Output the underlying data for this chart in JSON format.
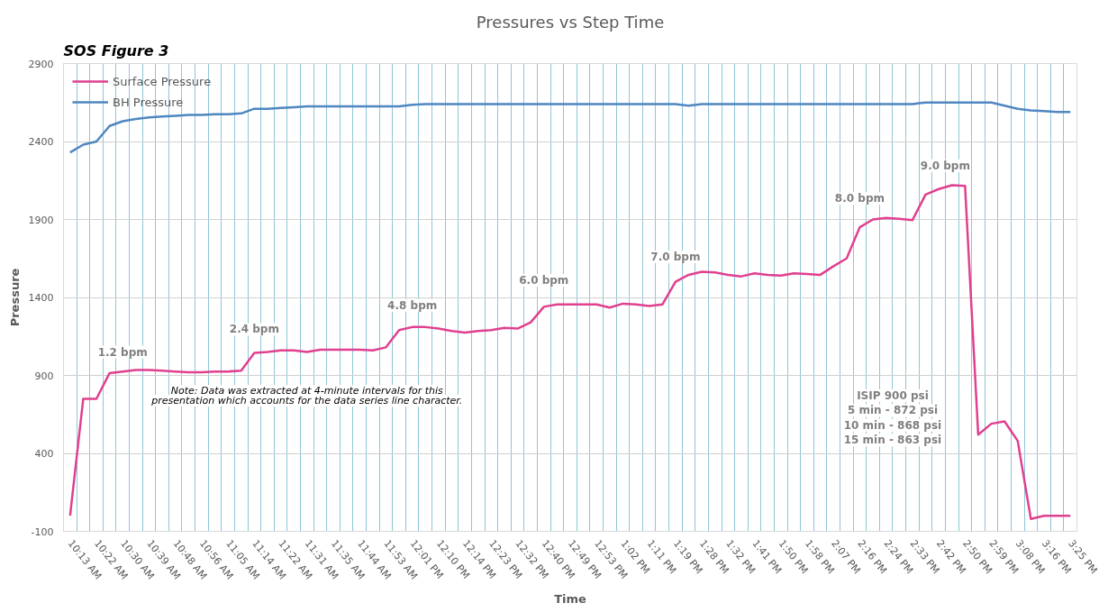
{
  "chart_data": {
    "type": "line",
    "title": "Pressures vs Step Time",
    "xlabel": "Time",
    "ylabel": "Pressure",
    "categories": [
      "10:13 AM",
      null,
      "10:22 AM",
      null,
      "10:30 AM",
      null,
      "10:39 AM",
      null,
      "10:48 AM",
      null,
      "10:56 AM",
      null,
      "11:05 AM",
      null,
      "11:14 AM",
      null,
      "11:22 AM",
      null,
      "11:31 AM",
      null,
      "11:35 AM",
      null,
      "11:44 AM",
      null,
      "11:53 AM",
      null,
      "12:01 PM",
      null,
      "12:10 PM",
      null,
      "12:14 PM",
      null,
      "12:23 PM",
      null,
      "12:32 PM",
      null,
      "12:40 PM",
      null,
      "12:49 PM",
      null,
      "12:53 PM",
      null,
      "1:02 PM",
      null,
      "1:11 PM",
      null,
      "1:19 PM",
      null,
      "1:28 PM",
      null,
      "1:32 PM",
      null,
      "1:41 PM",
      null,
      "1:50 PM",
      null,
      "1:58 PM",
      null,
      "2:07 PM",
      null,
      "2:16 PM",
      null,
      "2:24 PM",
      null,
      "2:33 PM",
      null,
      "2:42 PM",
      null,
      "2:50 PM",
      null,
      "2:59 PM",
      null,
      "3:08 PM",
      null,
      "3:16 PM",
      null,
      "3:25 PM"
    ],
    "series": [
      {
        "name": "Surface Pressure",
        "color": "#e0408f",
        "values": [
          0,
          750,
          750,
          915,
          925,
          935,
          935,
          930,
          925,
          920,
          920,
          925,
          925,
          930,
          1045,
          1050,
          1060,
          1060,
          1050,
          1065,
          1065,
          1065,
          1065,
          1060,
          1080,
          1190,
          1210,
          1210,
          1200,
          1185,
          1175,
          1185,
          1190,
          1205,
          1200,
          1240,
          1340,
          1355,
          1355,
          1355,
          1355,
          1335,
          1360,
          1355,
          1345,
          1355,
          1500,
          1545,
          1565,
          1560,
          1545,
          1535,
          1555,
          1545,
          1540,
          1555,
          1550,
          1545,
          1600,
          1650,
          1850,
          1900,
          1910,
          1905,
          1895,
          2060,
          2095,
          2120,
          2115,
          520,
          590,
          605,
          480,
          -20,
          0,
          0,
          0
        ]
      },
      {
        "name": "BH Pressure",
        "color": "#4f87c0",
        "values": [
          2330,
          2380,
          2400,
          2500,
          2530,
          2545,
          2555,
          2560,
          2565,
          2570,
          2570,
          2575,
          2575,
          2580,
          2610,
          2610,
          2615,
          2620,
          2625,
          2625,
          2625,
          2625,
          2625,
          2625,
          2625,
          2625,
          2635,
          2640,
          2640,
          2640,
          2640,
          2640,
          2640,
          2640,
          2640,
          2640,
          2640,
          2640,
          2640,
          2640,
          2640,
          2640,
          2640,
          2640,
          2640,
          2640,
          2640,
          2630,
          2640,
          2640,
          2640,
          2640,
          2640,
          2640,
          2640,
          2640,
          2640,
          2640,
          2640,
          2640,
          2640,
          2640,
          2640,
          2640,
          2640,
          2650,
          2650,
          2650,
          2650,
          2650,
          2650,
          2630,
          2610,
          2600,
          2595,
          2590,
          2590
        ]
      }
    ],
    "ylim": [
      -100,
      2900
    ],
    "yticks": [
      -100,
      400,
      900,
      1400,
      1900,
      2400,
      2900
    ],
    "grid": true,
    "legend": "top left",
    "marker": "none",
    "line_style": "solid",
    "annotations": [
      "SOS Figure 3",
      "Note: Data was extracted at 4-minute intervals for this\npresentation which accounts for the data series line character.",
      "ISIP 900 psi\n5 min - 872 psi\n10 min - 868 psi\n15 min - 863 psi",
      "1.2 bpm",
      "2.4 bpm",
      "4.8 bpm",
      "6.0 bpm",
      "7.0 bpm",
      "8.0 bpm",
      "9.0 bpm"
    ]
  }
}
